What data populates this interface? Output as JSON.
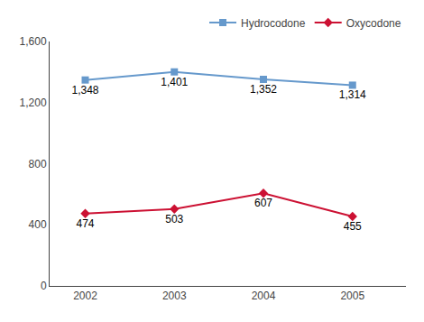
{
  "chart_data": {
    "type": "line",
    "x": [
      2002,
      2003,
      2004,
      2005
    ],
    "series": [
      {
        "name": "Hydrocodone",
        "color": "#6699cc",
        "marker": "square",
        "values": [
          1348,
          1401,
          1352,
          1314
        ],
        "value_labels": [
          "1,348",
          "1,401",
          "1,352",
          "1,314"
        ]
      },
      {
        "name": "Oxycodone",
        "color": "#cc1133",
        "marker": "diamond",
        "values": [
          474,
          503,
          607,
          455
        ]
      }
    ],
    "xlim": [
      2001.6,
      2005.6
    ],
    "xticks": [
      2002,
      2003,
      2004,
      2005
    ],
    "ylim": [
      0,
      1600
    ],
    "yticks": [
      0,
      400,
      800,
      {
        "value": 1200,
        "label": "1,200"
      },
      {
        "value": 1600,
        "label": "1,600"
      }
    ],
    "grid": false,
    "legend": "upper right",
    "data_labels": true
  }
}
